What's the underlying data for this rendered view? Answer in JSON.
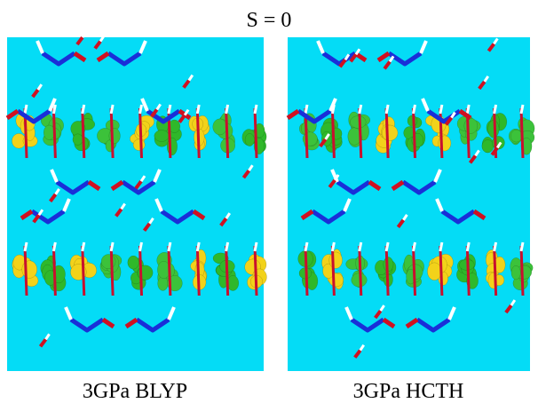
{
  "title": "S = 0",
  "panels": [
    {
      "label": "3GPa BLYP"
    },
    {
      "label": "3GPa HCTH"
    }
  ]
}
